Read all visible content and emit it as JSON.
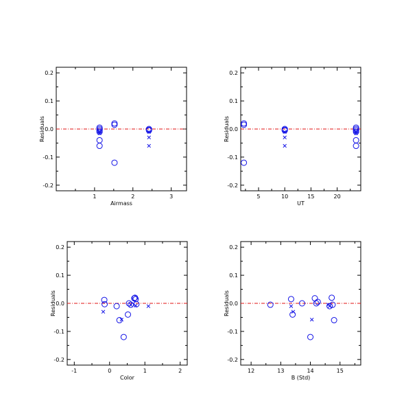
{
  "chart_data": [
    {
      "type": "scatter",
      "xlabel": "Airmass",
      "ylabel": "Residuals",
      "xlim": [
        0,
        3.4
      ],
      "ylim": [
        -0.22,
        0.22
      ],
      "xticks": [
        1,
        2,
        3
      ],
      "yticks": [
        -0.2,
        -0.1,
        0.0,
        0.1,
        0.2
      ],
      "ytick_labels": [
        "-0.2",
        "-0.1",
        "0.0",
        "0.1",
        "0.2"
      ],
      "zero_line": 0,
      "series": [
        {
          "marker": "circle",
          "x": [
            1.13,
            1.13,
            1.13,
            1.13,
            1.13,
            1.13,
            1.52,
            1.52,
            1.52,
            2.42,
            2.42,
            2.42
          ],
          "y": [
            0.005,
            0.0,
            -0.005,
            -0.01,
            -0.04,
            -0.06,
            0.02,
            0.015,
            -0.12,
            0.0,
            -0.003,
            -0.005
          ]
        },
        {
          "marker": "cross",
          "x": [
            1.13,
            1.13,
            2.42,
            2.42,
            2.42
          ],
          "y": [
            -0.01,
            -0.015,
            -0.01,
            -0.03,
            -0.06
          ]
        }
      ]
    },
    {
      "type": "scatter",
      "xlabel": "UT",
      "ylabel": "Residuals",
      "xlim": [
        1.6,
        24.5
      ],
      "ylim": [
        -0.22,
        0.22
      ],
      "xticks": [
        5,
        10,
        15,
        20
      ],
      "yticks": [
        -0.2,
        -0.1,
        0.0,
        0.1,
        0.2
      ],
      "ytick_labels": [
        "-0.2",
        "-0.1",
        "0.0",
        "0.1",
        "0.2"
      ],
      "zero_line": 0,
      "series": [
        {
          "marker": "circle",
          "x": [
            2.2,
            2.2,
            2.2,
            10.0,
            10.0,
            10.0,
            23.6,
            23.6,
            23.6,
            23.6,
            23.6,
            23.6
          ],
          "y": [
            0.02,
            0.015,
            -0.12,
            0.0,
            -0.003,
            -0.005,
            0.005,
            0.0,
            -0.005,
            -0.01,
            -0.04,
            -0.06
          ]
        },
        {
          "marker": "cross",
          "x": [
            10.0,
            10.0,
            10.0,
            23.6,
            23.6
          ],
          "y": [
            -0.01,
            -0.03,
            -0.06,
            -0.01,
            -0.015
          ]
        }
      ]
    },
    {
      "type": "scatter",
      "xlabel": "Color",
      "ylabel": "Residuals",
      "xlim": [
        -1.2,
        2.2
      ],
      "ylim": [
        -0.22,
        0.22
      ],
      "xticks": [
        -1,
        0,
        1,
        2
      ],
      "yticks": [
        -0.2,
        -0.1,
        0.0,
        0.1,
        0.2
      ],
      "ytick_labels": [
        "-0.2",
        "-0.1",
        "0.0",
        "0.1",
        "0.2"
      ],
      "zero_line": 0,
      "series": [
        {
          "marker": "circle",
          "x": [
            -0.15,
            -0.14,
            0.2,
            0.28,
            0.4,
            0.52,
            0.55,
            0.6,
            0.7,
            0.72,
            0.74,
            0.76
          ],
          "y": [
            0.012,
            -0.003,
            -0.01,
            -0.06,
            -0.12,
            -0.04,
            0.0,
            -0.005,
            0.018,
            0.02,
            0.015,
            -0.003
          ]
        },
        {
          "marker": "cross",
          "x": [
            -0.18,
            0.34,
            0.6,
            0.74,
            1.1
          ],
          "y": [
            -0.03,
            -0.058,
            -0.005,
            -0.008,
            -0.01
          ]
        }
      ]
    },
    {
      "type": "scatter",
      "xlabel": "B (Std)",
      "ylabel": "Residuals",
      "xlim": [
        11.65,
        15.7
      ],
      "ylim": [
        -0.22,
        0.22
      ],
      "xticks": [
        12,
        13,
        14,
        15
      ],
      "yticks": [
        -0.2,
        -0.1,
        0.0,
        0.1,
        0.2
      ],
      "ytick_labels": [
        "-0.2",
        "-0.1",
        "0.0",
        "0.1",
        "0.2"
      ],
      "zero_line": 0,
      "series": [
        {
          "marker": "circle",
          "x": [
            12.65,
            13.35,
            13.4,
            13.72,
            14.0,
            14.15,
            14.2,
            14.25,
            14.65,
            14.72,
            14.75,
            14.8
          ],
          "y": [
            -0.005,
            0.015,
            -0.04,
            0.0,
            -0.12,
            0.018,
            0.0,
            0.005,
            -0.01,
            0.02,
            -0.005,
            -0.06
          ]
        },
        {
          "marker": "cross",
          "x": [
            13.35,
            13.42,
            14.05,
            14.6,
            14.65
          ],
          "y": [
            -0.01,
            -0.03,
            -0.058,
            -0.005,
            -0.01
          ]
        }
      ]
    }
  ]
}
